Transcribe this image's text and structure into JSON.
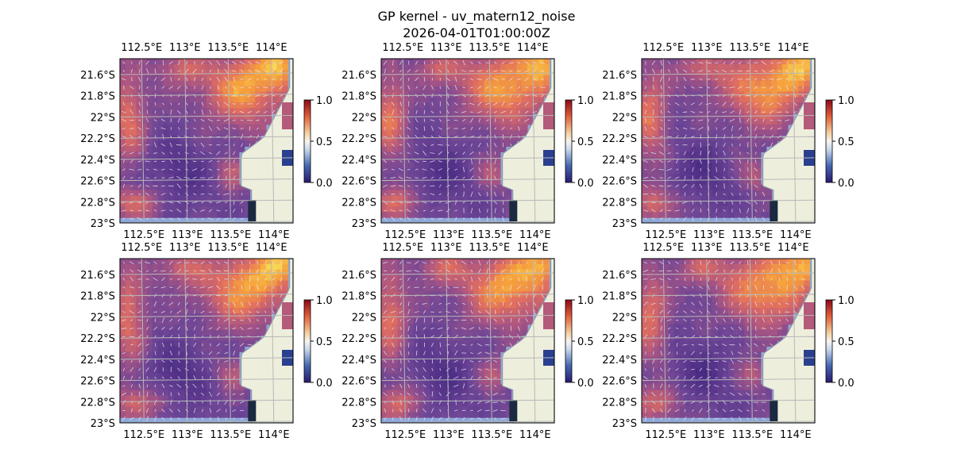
{
  "figure": {
    "title": "GP kernel - uv_matern12_noise",
    "subtitle": "2026-04-01T01:00:00Z"
  },
  "chart_data": {
    "type": "heatmap",
    "layout": "2x3 grid of map panels",
    "lon_ticks": [
      "112.5°E",
      "113°E",
      "113.5°E",
      "114°E"
    ],
    "lat_ticks": [
      "21.6°S",
      "21.8°S",
      "22°S",
      "22.2°S",
      "22.4°S",
      "22.6°S",
      "22.8°S",
      "23°S"
    ],
    "lon_range": [
      112.25,
      114.25
    ],
    "lat_range": [
      -23.0,
      -21.45
    ],
    "colorbar": {
      "ticks": [
        "0.0",
        "0.5",
        "1.0"
      ],
      "range": [
        0,
        1
      ],
      "colormap": "blue-white-red"
    },
    "field_colormap": "plasma-like (purple to yellow)",
    "land_color": "#eeeedd",
    "ocean_mask_color": "#8fa8d8",
    "grid": true,
    "panels": [
      {
        "row": 0,
        "col": 0
      },
      {
        "row": 0,
        "col": 1
      },
      {
        "row": 0,
        "col": 2
      },
      {
        "row": 1,
        "col": 0
      },
      {
        "row": 1,
        "col": 1
      },
      {
        "row": 1,
        "col": 2
      }
    ]
  }
}
